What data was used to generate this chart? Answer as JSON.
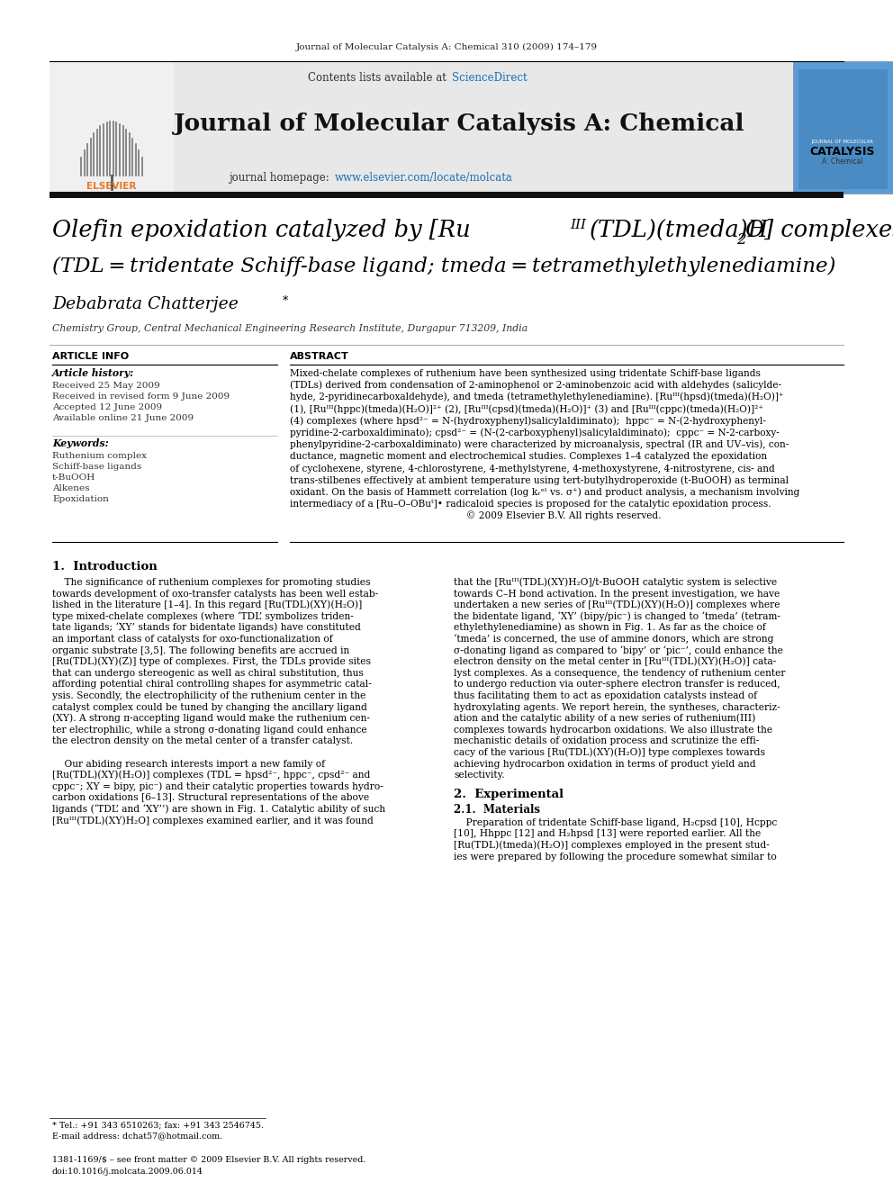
{
  "page_bg": "#ffffff",
  "header_journal_citation": "Journal of Molecular Catalysis A: Chemical 310 (2009) 174–179",
  "header_bg": "#e8e8e8",
  "header_sciencedirect_color": "#1a6eb5",
  "header_journal_title": "Journal of Molecular Catalysis A: Chemical",
  "header_homepage_color": "#1a6eb5",
  "article_info_header": "ARTICLE INFO",
  "abstract_header": "ABSTRACT",
  "article_history_label": "Article history:",
  "received_1": "Received 25 May 2009",
  "received_revised": "Received in revised form 9 June 2009",
  "accepted": "Accepted 12 June 2009",
  "available": "Available online 21 June 2009",
  "keywords_label": "Keywords:",
  "keyword1": "Ruthenium complex",
  "keyword2": "Schiff-base ligands",
  "keyword3": "t-BuOOH",
  "keyword4": "Alkenes",
  "keyword5": "Epoxidation",
  "affiliation": "Chemistry Group, Central Mechanical Engineering Research Institute, Durgapur 713209, India",
  "footnote_phone": "* Tel.: +91 343 6510263; fax: +91 343 2546745.",
  "footnote_email": "E-mail address: dchat57@hotmail.com.",
  "footer_issn": "1381-1169/$ – see front matter © 2009 Elsevier B.V. All rights reserved.",
  "footer_doi": "doi:10.1016/j.molcata.2009.06.014",
  "abstract_lines": [
    "Mixed-chelate complexes of ruthenium have been synthesized using tridentate Schiff-base ligands",
    "(TDLs) derived from condensation of 2-aminophenol or 2-aminobenzoic acid with aldehydes (salicylde-",
    "hyde, 2-pyridinecarboxaldehyde), and tmeda (tetramethylethylenediamine). [Ruᴵᴵᴵ(hpsd)(tmeda)(H₂O)]⁺",
    "(1), [Ruᴵᴵᴵ(hppc)(tmeda)(H₂O)]²⁺ (2), [Ruᴵᴵᴵ(cpsd)(tmeda)(H₂O)]⁺ (3) and [Ruᴵᴵᴵ(cppc)(tmeda)(H₂O)]²⁺",
    "(4) complexes (where hpsd²⁻ = N-(hydroxyphenyl)salicylaldiminato);  hppc⁻ = N-(2-hydroxyphenyl-",
    "pyridine-2-carboxaldiminato); cpsd²⁻ = (N-(2-carboxyphenyl)salicylaldiminato);  cppc⁻ = N-2-carboxy-",
    "phenylpyridine-2-carboxaldiminato) were characterized by microanalysis, spectral (IR and UV–vis), con-",
    "ductance, magnetic moment and electrochemical studies. Complexes 1–4 catalyzed the epoxidation",
    "of cyclohexene, styrene, 4-chlorostyrene, 4-methylstyrene, 4-methoxystyrene, 4-nitrostyrene, cis- and",
    "trans-stilbenes effectively at ambient temperature using tert-butylhydroperoxide (t-BuOOH) as terminal",
    "oxidant. On the basis of Hammett correlation (log kᵣᵉˡ vs. σ⁺) and product analysis, a mechanism involving",
    "intermediacy of a [Ru–O–OBuᵗ]• radicaloid species is proposed for the catalytic epoxidation process.",
    "                                                          © 2009 Elsevier B.V. All rights reserved."
  ],
  "intro_c1_lines": [
    "    The significance of ruthenium complexes for promoting studies",
    "towards development of oxo-transfer catalysts has been well estab-",
    "lished in the literature [1–4]. In this regard [Ru(TDL)(XY)(H₂O)]",
    "type mixed-chelate complexes (where ‘TDL’ symbolizes triden-",
    "tate ligands; ‘XY’ stands for bidentate ligands) have constituted",
    "an important class of catalysts for oxo-functionalization of",
    "organic substrate [3,5]. The following benefits are accrued in",
    "[Ru(TDL)(XY)(Z)] type of complexes. First, the TDLs provide sites",
    "that can undergo stereogenic as well as chiral substitution, thus",
    "affording potential chiral controlling shapes for asymmetric catal-",
    "ysis. Secondly, the electrophilicity of the ruthenium center in the",
    "catalyst complex could be tuned by changing the ancillary ligand",
    "(XY). A strong π-accepting ligand would make the ruthenium cen-",
    "ter electrophilic, while a strong σ-donating ligand could enhance",
    "the electron density on the metal center of a transfer catalyst.",
    "",
    "    Our abiding research interests import a new family of",
    "[Ru(TDL)(XY)(H₂O)] complexes (TDL = hpsd²⁻, hppc⁻, cpsd²⁻ and",
    "cppc⁻; XY = bipy, pic⁻) and their catalytic properties towards hydro-",
    "carbon oxidations [6–13]. Structural representations of the above",
    "ligands (‘TDL’ and ‘XY’’) are shown in Fig. 1. Catalytic ability of such",
    "[Ruᴵᴵᴵ(TDL)(XY)H₂O] complexes examined earlier, and it was found"
  ],
  "intro_c2_lines": [
    "that the [Ruᴵᴵᴵ(TDL)(XY)H₂O]/t-BuOOH catalytic system is selective",
    "towards C–H bond activation. In the present investigation, we have",
    "undertaken a new series of [Ruᴵᴵᴵ(TDL)(XY)(H₂O)] complexes where",
    "the bidentate ligand, ‘XY’ (bipy/pic⁻) is changed to ‘tmeda’ (tetram-",
    "ethylethylenediamine) as shown in Fig. 1. As far as the choice of",
    "‘tmeda’ is concerned, the use of ammine donors, which are strong",
    "σ-donating ligand as compared to ‘bipy’ or ‘pic⁻’, could enhance the",
    "electron density on the metal center in [Ruᴵᴵᴵ(TDL)(XY)(H₂O)] cata-",
    "lyst complexes. As a consequence, the tendency of ruthenium center",
    "to undergo reduction via outer-sphere electron transfer is reduced,",
    "thus facilitating them to act as epoxidation catalysts instead of",
    "hydroxylating agents. We report herein, the syntheses, characteriz-",
    "ation and the catalytic ability of a new series of ruthenium(III)",
    "complexes towards hydrocarbon oxidations. We also illustrate the",
    "mechanistic details of oxidation process and scrutinize the effi-",
    "cacy of the various [Ru(TDL)(XY)(H₂O)] type complexes towards",
    "achieving hydrocarbon oxidation in terms of product yield and",
    "selectivity."
  ],
  "sec2_header": "2.  Experimental",
  "sec21_header": "2.1.  Materials",
  "sec21_lines": [
    "    Preparation of tridentate Schiff-base ligand, H₂cpsd [10], Hcppc",
    "[10], Hhppc [12] and H₂hpsd [13] were reported earlier. All the",
    "[Ru(TDL)(tmeda)(H₂O)] complexes employed in the present stud-",
    "ies were prepared by following the procedure somewhat similar to"
  ]
}
